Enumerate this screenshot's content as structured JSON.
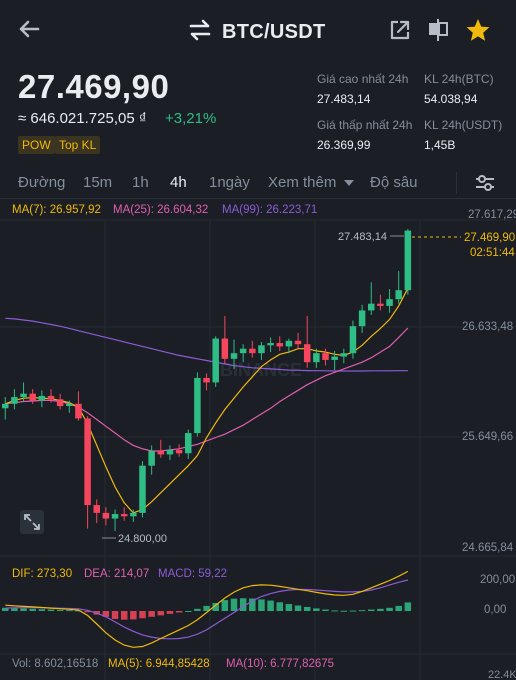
{
  "header": {
    "pair": "BTC/USDT",
    "icons": [
      "back-arrow-icon",
      "swap-icon",
      "share-icon",
      "split-screen-icon",
      "star-icon"
    ]
  },
  "ticker": {
    "last_price": "27.469,90",
    "fiat_value": "≈ 646.021.725,05 ₫",
    "change_pct": "+3,21%",
    "tags": [
      "POW",
      "Top KL"
    ]
  },
  "stats": {
    "high_label": "Giá cao nhất 24h",
    "high_value": "27.483,14",
    "low_label": "Giá thấp nhất 24h",
    "low_value": "26.369,99",
    "vol_btc_label": "KL 24h(BTC)",
    "vol_btc_value": "54.038,94",
    "vol_usdt_label": "KL 24h(USDT)",
    "vol_usdt_value": "1,45B"
  },
  "tabs": {
    "line": "Đường",
    "m15": "15m",
    "h1": "1h",
    "h4": "4h",
    "d1": "1ngày",
    "more": "Xem thêm",
    "depth": "Độ sâu",
    "active": "4h"
  },
  "ma": {
    "ma7": "MA(7): 26.957,92",
    "ma25": "MA(25): 26.604,32",
    "ma99": "MA(99): 26.223,71"
  },
  "price_axis": [
    "27.617,29",
    "26.633,48",
    "25.649,66",
    "24.665,84"
  ],
  "price_marker": {
    "price": "27.469,90",
    "countdown": "02:51:44",
    "high_mark": "27.483,14",
    "low_mark": "24.800,00"
  },
  "watermark": "BINANCE",
  "macd": {
    "dif": "DIF: 273,30",
    "dea": "DEA: 214,07",
    "macd": "MACD: 59,22",
    "axis": [
      "200,00",
      "0,00"
    ]
  },
  "volume": {
    "vol": "Vol: 8.602,16518",
    "ma5": "MA(5): 6.944,85428",
    "ma10": "MA(10): 6.777,82675",
    "axis": "22.4K"
  },
  "colors": {
    "up": "#2ebd85",
    "down": "#f6465d",
    "ma7": "#f0b90b",
    "ma25": "#e05fb0",
    "ma99": "#8b5cd6",
    "accent": "#f0b90b"
  },
  "chart_data": {
    "type": "candlestick",
    "interval": "4h",
    "ylim": [
      24665.84,
      27617.29
    ],
    "candles": [
      {
        "o": 25890,
        "h": 25990,
        "l": 25790,
        "c": 25930
      },
      {
        "o": 25930,
        "h": 26060,
        "l": 25880,
        "c": 25990
      },
      {
        "o": 25990,
        "h": 26120,
        "l": 25950,
        "c": 26020
      },
      {
        "o": 26020,
        "h": 26060,
        "l": 25930,
        "c": 25960
      },
      {
        "o": 25960,
        "h": 26050,
        "l": 25900,
        "c": 26000
      },
      {
        "o": 26000,
        "h": 26060,
        "l": 25940,
        "c": 25970
      },
      {
        "o": 25970,
        "h": 26020,
        "l": 25880,
        "c": 25910
      },
      {
        "o": 25910,
        "h": 25960,
        "l": 25850,
        "c": 25930
      },
      {
        "o": 25930,
        "h": 26040,
        "l": 25780,
        "c": 25800
      },
      {
        "o": 25800,
        "h": 25820,
        "l": 24820,
        "c": 25030
      },
      {
        "o": 25030,
        "h": 25080,
        "l": 24870,
        "c": 24960
      },
      {
        "o": 24960,
        "h": 25010,
        "l": 24850,
        "c": 24910
      },
      {
        "o": 24910,
        "h": 24990,
        "l": 24800,
        "c": 24950
      },
      {
        "o": 24950,
        "h": 25010,
        "l": 24890,
        "c": 24930
      },
      {
        "o": 24930,
        "h": 24990,
        "l": 24880,
        "c": 24960
      },
      {
        "o": 24960,
        "h": 25420,
        "l": 24920,
        "c": 25380
      },
      {
        "o": 25380,
        "h": 25560,
        "l": 25300,
        "c": 25510
      },
      {
        "o": 25510,
        "h": 25610,
        "l": 25450,
        "c": 25480
      },
      {
        "o": 25480,
        "h": 25560,
        "l": 25430,
        "c": 25520
      },
      {
        "o": 25520,
        "h": 25570,
        "l": 25460,
        "c": 25490
      },
      {
        "o": 25490,
        "h": 25700,
        "l": 25440,
        "c": 25670
      },
      {
        "o": 25670,
        "h": 26210,
        "l": 25640,
        "c": 26160
      },
      {
        "o": 26160,
        "h": 26200,
        "l": 26050,
        "c": 26120
      },
      {
        "o": 26120,
        "h": 26530,
        "l": 26080,
        "c": 26510
      },
      {
        "o": 26510,
        "h": 26710,
        "l": 26290,
        "c": 26330
      },
      {
        "o": 26330,
        "h": 26500,
        "l": 26240,
        "c": 26380
      },
      {
        "o": 26380,
        "h": 26460,
        "l": 26300,
        "c": 26420
      },
      {
        "o": 26420,
        "h": 26490,
        "l": 26340,
        "c": 26380
      },
      {
        "o": 26380,
        "h": 26480,
        "l": 26320,
        "c": 26450
      },
      {
        "o": 26450,
        "h": 26520,
        "l": 26390,
        "c": 26470
      },
      {
        "o": 26470,
        "h": 26530,
        "l": 26400,
        "c": 26440
      },
      {
        "o": 26440,
        "h": 26510,
        "l": 26380,
        "c": 26490
      },
      {
        "o": 26490,
        "h": 26560,
        "l": 26420,
        "c": 26460
      },
      {
        "o": 26460,
        "h": 26710,
        "l": 26250,
        "c": 26300
      },
      {
        "o": 26300,
        "h": 26420,
        "l": 26250,
        "c": 26380
      },
      {
        "o": 26380,
        "h": 26420,
        "l": 26270,
        "c": 26320
      },
      {
        "o": 26320,
        "h": 26400,
        "l": 26230,
        "c": 26350
      },
      {
        "o": 26350,
        "h": 26420,
        "l": 26290,
        "c": 26380
      },
      {
        "o": 26380,
        "h": 26670,
        "l": 26330,
        "c": 26620
      },
      {
        "o": 26620,
        "h": 26810,
        "l": 26560,
        "c": 26760
      },
      {
        "o": 26760,
        "h": 27010,
        "l": 26720,
        "c": 26820
      },
      {
        "o": 26820,
        "h": 26900,
        "l": 26760,
        "c": 26800
      },
      {
        "o": 26800,
        "h": 26950,
        "l": 26740,
        "c": 26860
      },
      {
        "o": 26860,
        "h": 27110,
        "l": 26820,
        "c": 26940
      },
      {
        "o": 26940,
        "h": 27483.14,
        "l": 26900,
        "c": 27469.9
      }
    ],
    "ma7": [
      25930,
      25960,
      25980,
      25985,
      25980,
      25975,
      25960,
      25940,
      25900,
      25750,
      25560,
      25370,
      25190,
      25050,
      24960,
      24990,
      25060,
      25140,
      25220,
      25300,
      25380,
      25470,
      25630,
      25760,
      25880,
      25980,
      26080,
      26170,
      26260,
      26320,
      26370,
      26390,
      26420,
      26420,
      26400,
      26390,
      26370,
      26360,
      26390,
      26450,
      26530,
      26600,
      26680,
      26800,
      26958
    ],
    "ma25": [
      25930,
      25940,
      25950,
      25955,
      25960,
      25960,
      25950,
      25930,
      25900,
      25850,
      25790,
      25730,
      25670,
      25610,
      25560,
      25530,
      25510,
      25510,
      25520,
      25530,
      25550,
      25570,
      25600,
      25630,
      25660,
      25700,
      25740,
      25790,
      25840,
      25890,
      25950,
      26000,
      26050,
      26100,
      26140,
      26180,
      26210,
      26240,
      26270,
      26300,
      26340,
      26390,
      26440,
      26520,
      26604
    ],
    "ma99": [
      26690,
      26685,
      26675,
      26665,
      26650,
      26635,
      26620,
      26600,
      26580,
      26560,
      26540,
      26520,
      26500,
      26480,
      26460,
      26440,
      26420,
      26400,
      26380,
      26360,
      26345,
      26330,
      26315,
      26300,
      26285,
      26270,
      26260,
      26250,
      26245,
      26240,
      26235,
      26230,
      26228,
      26225,
      26224,
      26223,
      26222,
      26222,
      26222,
      26222,
      26223,
      26223,
      26223,
      26224,
      26224
    ],
    "macd_hist": [
      22,
      20,
      18,
      15,
      12,
      10,
      8,
      6,
      4,
      -8,
      -25,
      -40,
      -55,
      -60,
      -58,
      -50,
      -40,
      -30,
      -20,
      -10,
      0,
      15,
      35,
      55,
      75,
      85,
      88,
      86,
      80,
      72,
      60,
      48,
      38,
      28,
      18,
      10,
      4,
      2,
      3,
      6,
      10,
      15,
      22,
      35,
      59
    ],
    "dif_line": [
      40,
      35,
      32,
      28,
      24,
      20,
      16,
      12,
      6,
      -30,
      -90,
      -150,
      -200,
      -235,
      -250,
      -245,
      -220,
      -190,
      -160,
      -130,
      -100,
      -60,
      -10,
      40,
      90,
      130,
      160,
      175,
      180,
      178,
      170,
      160,
      150,
      140,
      128,
      118,
      110,
      108,
      115,
      135,
      160,
      185,
      210,
      240,
      273
    ],
    "dea_line": [
      20,
      22,
      23,
      23,
      22,
      21,
      19,
      17,
      15,
      5,
      -15,
      -40,
      -75,
      -110,
      -140,
      -165,
      -180,
      -190,
      -192,
      -190,
      -180,
      -160,
      -130,
      -90,
      -50,
      -10,
      30,
      70,
      100,
      120,
      135,
      145,
      148,
      148,
      145,
      140,
      135,
      132,
      132,
      135,
      145,
      160,
      180,
      198,
      214
    ],
    "macd_axis": {
      "values": [
        200,
        0
      ]
    }
  }
}
